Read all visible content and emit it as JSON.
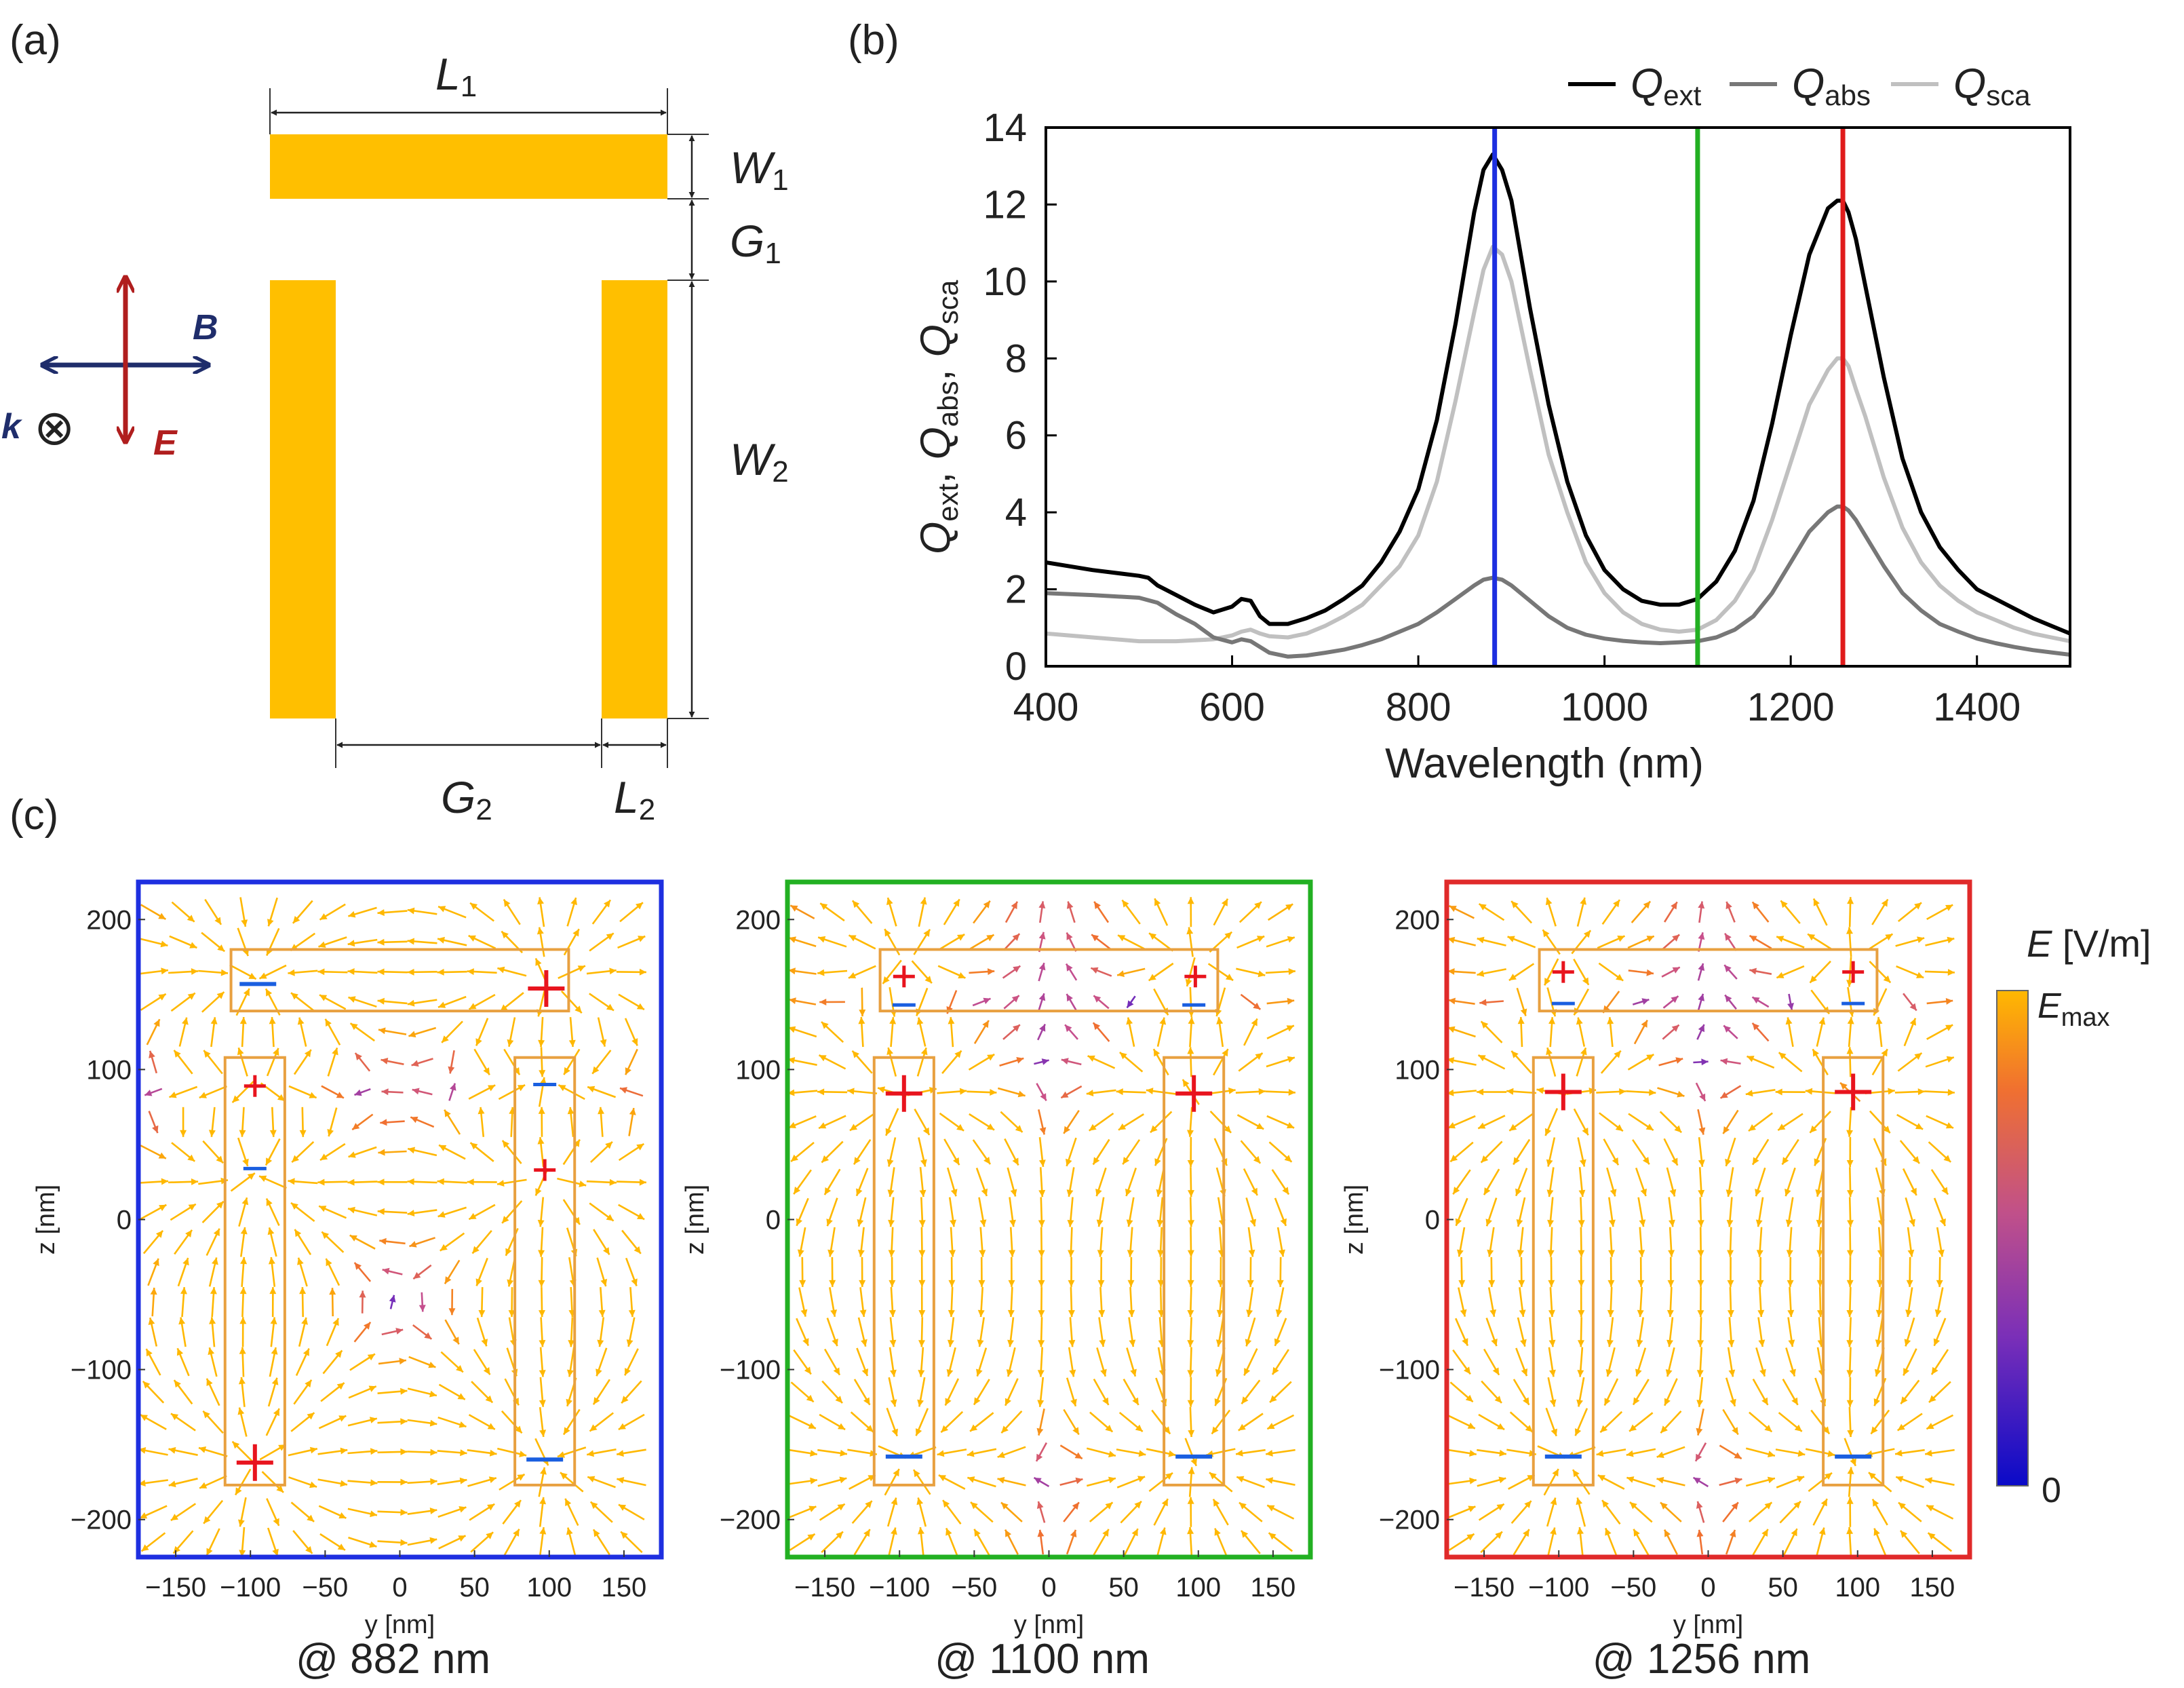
{
  "panel_labels": {
    "a": "(a)",
    "b": "(b)",
    "c": "(c)"
  },
  "schematic": {
    "labels": {
      "L1": {
        "main": "L",
        "sub": "1"
      },
      "W1": {
        "main": "W",
        "sub": "1"
      },
      "G1": {
        "main": "G",
        "sub": "1"
      },
      "W2": {
        "main": "W",
        "sub": "2"
      },
      "G2": {
        "main": "G",
        "sub": "2"
      },
      "L2": {
        "main": "L",
        "sub": "2"
      }
    },
    "field_labels": {
      "B": "B",
      "E": "E",
      "k": "k",
      "k_symbol": "⊗"
    },
    "colors": {
      "bar": "#FFBF00",
      "B": "#1F2D6B",
      "E": "#B01E1E"
    }
  },
  "chart_data": [
    {
      "type": "line",
      "xlabel": "Wavelength (nm)",
      "ylabel": [
        {
          "main": "Q",
          "sub": "ext"
        },
        {
          "main": "Q",
          "sub": "abs"
        },
        {
          "main": "Q",
          "sub": "sca"
        }
      ],
      "xlim": [
        400,
        1500
      ],
      "ylim": [
        0,
        14
      ],
      "xticks": [
        "400",
        "600",
        "800",
        "1000",
        "1200",
        "1400"
      ],
      "yticks": [
        "0",
        "2",
        "4",
        "6",
        "8",
        "10",
        "12",
        "14"
      ],
      "legend": [
        {
          "main": "Q",
          "sub": "ext",
          "color": "#000000"
        },
        {
          "main": "Q",
          "sub": "abs",
          "color": "#777777"
        },
        {
          "main": "Q",
          "sub": "sca",
          "color": "#C0C0C0"
        }
      ],
      "legend_position": "top-right",
      "series": [
        {
          "name": "Q_ext",
          "color": "#000000",
          "x": [
            400,
            450,
            500,
            510,
            520,
            540,
            560,
            580,
            600,
            610,
            620,
            630,
            640,
            660,
            680,
            700,
            720,
            740,
            760,
            780,
            800,
            820,
            840,
            860,
            870,
            880,
            890,
            900,
            920,
            940,
            960,
            980,
            1000,
            1020,
            1040,
            1060,
            1080,
            1100,
            1120,
            1140,
            1160,
            1180,
            1200,
            1220,
            1240,
            1250,
            1256,
            1262,
            1270,
            1280,
            1300,
            1320,
            1340,
            1360,
            1380,
            1400,
            1420,
            1440,
            1460,
            1480,
            1500
          ],
          "y": [
            2.7,
            2.5,
            2.35,
            2.3,
            2.1,
            1.85,
            1.6,
            1.4,
            1.55,
            1.75,
            1.7,
            1.3,
            1.1,
            1.1,
            1.25,
            1.45,
            1.75,
            2.1,
            2.7,
            3.5,
            4.6,
            6.4,
            8.9,
            11.8,
            12.9,
            13.3,
            12.9,
            12.1,
            9.3,
            6.8,
            4.8,
            3.4,
            2.5,
            2.0,
            1.7,
            1.6,
            1.6,
            1.75,
            2.2,
            3.0,
            4.3,
            6.3,
            8.6,
            10.7,
            11.9,
            12.1,
            12.1,
            11.8,
            11.1,
            9.9,
            7.5,
            5.4,
            4.0,
            3.1,
            2.5,
            2.0,
            1.75,
            1.5,
            1.25,
            1.05,
            0.85
          ]
        },
        {
          "name": "Q_abs",
          "color": "#777777",
          "x": [
            400,
            450,
            500,
            520,
            540,
            560,
            580,
            600,
            610,
            620,
            630,
            640,
            660,
            680,
            700,
            720,
            740,
            760,
            780,
            800,
            820,
            840,
            860,
            870,
            880,
            890,
            900,
            920,
            940,
            960,
            980,
            1000,
            1020,
            1040,
            1060,
            1080,
            1100,
            1120,
            1140,
            1160,
            1180,
            1200,
            1220,
            1240,
            1250,
            1256,
            1262,
            1270,
            1280,
            1300,
            1320,
            1340,
            1360,
            1380,
            1400,
            1420,
            1440,
            1460,
            1480,
            1500
          ],
          "y": [
            1.9,
            1.85,
            1.78,
            1.65,
            1.35,
            1.1,
            0.75,
            0.62,
            0.7,
            0.65,
            0.5,
            0.35,
            0.25,
            0.28,
            0.35,
            0.43,
            0.55,
            0.7,
            0.9,
            1.1,
            1.4,
            1.75,
            2.1,
            2.25,
            2.3,
            2.25,
            2.1,
            1.7,
            1.3,
            1.0,
            0.82,
            0.72,
            0.66,
            0.62,
            0.6,
            0.62,
            0.65,
            0.75,
            0.95,
            1.3,
            1.9,
            2.7,
            3.5,
            4.0,
            4.15,
            4.15,
            4.05,
            3.8,
            3.4,
            2.6,
            1.9,
            1.45,
            1.1,
            0.9,
            0.72,
            0.6,
            0.5,
            0.42,
            0.36,
            0.3
          ]
        },
        {
          "name": "Q_sca",
          "color": "#C0C0C0",
          "x": [
            400,
            450,
            500,
            540,
            580,
            600,
            610,
            620,
            630,
            640,
            660,
            680,
            700,
            720,
            740,
            760,
            780,
            800,
            820,
            840,
            860,
            870,
            880,
            890,
            900,
            920,
            940,
            960,
            980,
            1000,
            1020,
            1040,
            1060,
            1080,
            1100,
            1120,
            1140,
            1160,
            1180,
            1200,
            1220,
            1240,
            1250,
            1256,
            1262,
            1270,
            1280,
            1300,
            1320,
            1340,
            1360,
            1380,
            1400,
            1420,
            1440,
            1460,
            1480,
            1500
          ],
          "y": [
            0.85,
            0.75,
            0.65,
            0.65,
            0.7,
            0.8,
            0.9,
            0.95,
            0.85,
            0.78,
            0.75,
            0.85,
            1.05,
            1.3,
            1.6,
            2.1,
            2.6,
            3.4,
            4.8,
            6.9,
            9.2,
            10.3,
            10.9,
            10.7,
            10.0,
            7.7,
            5.5,
            4.0,
            2.7,
            1.9,
            1.4,
            1.1,
            0.95,
            0.9,
            0.95,
            1.2,
            1.7,
            2.5,
            3.8,
            5.3,
            6.8,
            7.7,
            8.0,
            8.0,
            7.8,
            7.2,
            6.5,
            4.9,
            3.6,
            2.7,
            2.1,
            1.7,
            1.4,
            1.2,
            1.0,
            0.85,
            0.75,
            0.65
          ]
        }
      ],
      "markers": [
        {
          "x": 882,
          "color": "#1D2FE0"
        },
        {
          "x": 1100,
          "color": "#22B022"
        },
        {
          "x": 1256,
          "color": "#E01B1B"
        }
      ]
    },
    {
      "type": "vector-field",
      "title": "@ 882 nm",
      "frame_color": "#1E2FE0",
      "xlabel": "y [nm]",
      "ylabel": "z [nm]",
      "xlim": [
        -175,
        175
      ],
      "ylim": [
        -225,
        225
      ],
      "xticks": [
        "−150",
        "−100",
        "−50",
        "0",
        "50",
        "100",
        "150"
      ],
      "yticks": [
        "200",
        "100",
        "0",
        "−100",
        "−200"
      ],
      "charges": [
        {
          "y": -95,
          "z": 157,
          "sign": "-",
          "size": "big"
        },
        {
          "y": 98,
          "z": 154,
          "sign": "+",
          "size": "big"
        },
        {
          "y": -97,
          "z": 89,
          "sign": "+",
          "size": "small"
        },
        {
          "y": 97,
          "z": 90,
          "sign": "-",
          "size": "small"
        },
        {
          "y": -97,
          "z": 34,
          "sign": "-",
          "size": "small"
        },
        {
          "y": 97,
          "z": 33,
          "sign": "+",
          "size": "small"
        },
        {
          "y": -97,
          "z": -162,
          "sign": "+",
          "size": "big"
        },
        {
          "y": 97,
          "z": -160,
          "sign": "-",
          "size": "big"
        }
      ]
    },
    {
      "type": "vector-field",
      "title": "@ 1100 nm",
      "frame_color": "#22B022",
      "xlabel": "y [nm]",
      "ylabel": "z [nm]",
      "xlim": [
        -175,
        175
      ],
      "ylim": [
        -225,
        225
      ],
      "xticks": [
        "−150",
        "−100",
        "−50",
        "0",
        "50",
        "100",
        "150"
      ],
      "yticks": [
        "200",
        "100",
        "0",
        "−100",
        "−200"
      ],
      "charges": [
        {
          "y": -97,
          "z": 162,
          "sign": "+",
          "size": "small"
        },
        {
          "y": 98,
          "z": 162,
          "sign": "+",
          "size": "small"
        },
        {
          "y": -97,
          "z": 143,
          "sign": "-",
          "size": "small"
        },
        {
          "y": 97,
          "z": 143,
          "sign": "-",
          "size": "small"
        },
        {
          "y": -97,
          "z": 84,
          "sign": "+",
          "size": "big"
        },
        {
          "y": 97,
          "z": 84,
          "sign": "+",
          "size": "big"
        },
        {
          "y": -97,
          "z": -158,
          "sign": "-",
          "size": "big"
        },
        {
          "y": 97,
          "z": -158,
          "sign": "-",
          "size": "big"
        }
      ]
    },
    {
      "type": "vector-field",
      "title": "@ 1256 nm",
      "frame_color": "#E02A2A",
      "xlabel": "y [nm]",
      "ylabel": "z [nm]",
      "xlim": [
        -175,
        175
      ],
      "ylim": [
        -225,
        225
      ],
      "xticks": [
        "−150",
        "−100",
        "−50",
        "0",
        "50",
        "100",
        "150"
      ],
      "yticks": [
        "200",
        "100",
        "0",
        "−100",
        "−200"
      ],
      "charges": [
        {
          "y": -97,
          "z": 165,
          "sign": "+",
          "size": "small"
        },
        {
          "y": 97,
          "z": 165,
          "sign": "+",
          "size": "small"
        },
        {
          "y": -97,
          "z": 144,
          "sign": "-",
          "size": "small"
        },
        {
          "y": 97,
          "z": 144,
          "sign": "-",
          "size": "small"
        },
        {
          "y": -97,
          "z": 85,
          "sign": "+",
          "size": "big"
        },
        {
          "y": 97,
          "z": 85,
          "sign": "+",
          "size": "big"
        },
        {
          "y": -97,
          "z": -158,
          "sign": "-",
          "size": "big"
        },
        {
          "y": 97,
          "z": -158,
          "sign": "-",
          "size": "big"
        }
      ]
    }
  ],
  "colorbar": {
    "title": "E [V/m]",
    "title_main": "E",
    "title_unit": " [V/m]",
    "max_main": "E",
    "max_sub": "max",
    "min_label": "0",
    "colors": [
      "#0A0AC8",
      "#7A2FB8",
      "#C0508A",
      "#F07030",
      "#FFB800"
    ]
  }
}
